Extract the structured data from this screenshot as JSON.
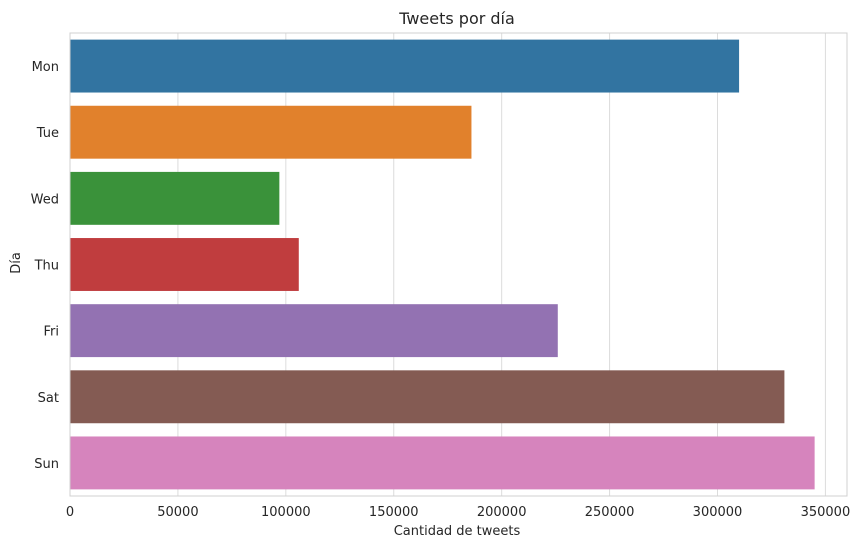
{
  "chart_data": {
    "type": "bar",
    "orientation": "horizontal",
    "title": "Tweets por día",
    "xlabel": "Cantidad de tweets",
    "ylabel": "Día",
    "categories": [
      "Mon",
      "Tue",
      "Wed",
      "Thu",
      "Fri",
      "Sat",
      "Sun"
    ],
    "values": [
      310000,
      186000,
      97000,
      106000,
      226000,
      331000,
      345000
    ],
    "colors": [
      "#3274a1",
      "#e1812c",
      "#3a923a",
      "#c03d3e",
      "#9372b2",
      "#845b53",
      "#d684bd"
    ],
    "xlim": [
      0,
      360000
    ],
    "xticks": [
      0,
      50000,
      100000,
      150000,
      200000,
      250000,
      300000,
      350000
    ],
    "xtick_labels": [
      "0",
      "50000",
      "100000",
      "150000",
      "200000",
      "250000",
      "300000",
      "350000"
    ],
    "grid": "vertical",
    "style": "seaborn-whitegrid"
  }
}
